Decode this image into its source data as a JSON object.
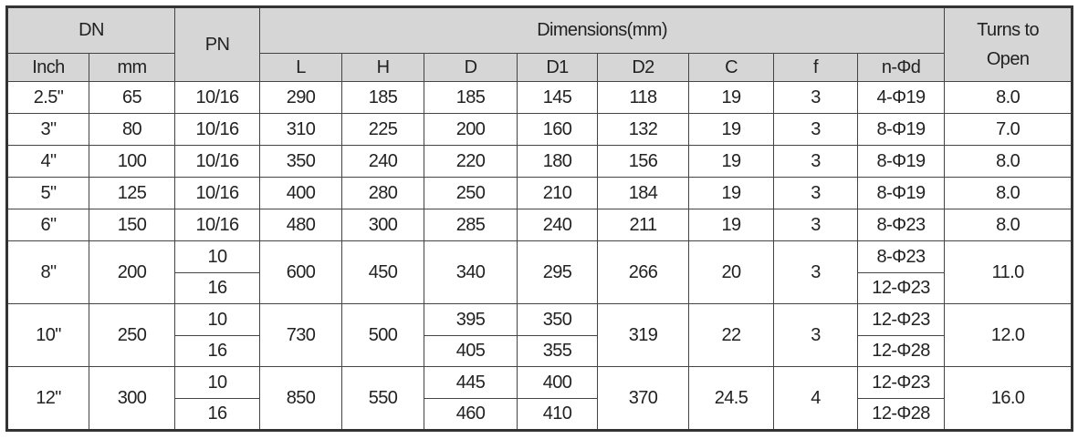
{
  "header": {
    "dn": "DN",
    "pn": "PN",
    "dimensions": "Dimensions(mm)",
    "turns": "Turns to Open",
    "inch": "Inch",
    "mm": "mm",
    "dims": [
      "L",
      "H",
      "D",
      "D1",
      "D2",
      "C",
      "f",
      "n-Φd"
    ]
  },
  "rows": [
    {
      "inch": "2.5\"",
      "mm": "65",
      "pn": "10/16",
      "L": "290",
      "H": "185",
      "D": "185",
      "D1": "145",
      "D2": "118",
      "C": "19",
      "f": "3",
      "nd": "4-Φ19",
      "turns": "8.0"
    },
    {
      "inch": "3\"",
      "mm": "80",
      "pn": "10/16",
      "L": "310",
      "H": "225",
      "D": "200",
      "D1": "160",
      "D2": "132",
      "C": "19",
      "f": "3",
      "nd": "8-Φ19",
      "turns": "7.0"
    },
    {
      "inch": "4\"",
      "mm": "100",
      "pn": "10/16",
      "L": "350",
      "H": "240",
      "D": "220",
      "D1": "180",
      "D2": "156",
      "C": "19",
      "f": "3",
      "nd": "8-Φ19",
      "turns": "8.0"
    },
    {
      "inch": "5\"",
      "mm": "125",
      "pn": "10/16",
      "L": "400",
      "H": "280",
      "D": "250",
      "D1": "210",
      "D2": "184",
      "C": "19",
      "f": "3",
      "nd": "8-Φ19",
      "turns": "8.0"
    },
    {
      "inch": "6\"",
      "mm": "150",
      "pn": "10/16",
      "L": "480",
      "H": "300",
      "D": "285",
      "D1": "240",
      "D2": "211",
      "C": "19",
      "f": "3",
      "nd": "8-Φ23",
      "turns": "8.0"
    },
    {
      "inch": "8\"",
      "mm": "200",
      "pn": [
        "10",
        "16"
      ],
      "L": "600",
      "H": "450",
      "D": "340",
      "D1": "295",
      "D2": "266",
      "C": "20",
      "f": "3",
      "nd": [
        "8-Φ23",
        "12-Φ23"
      ],
      "turns": "11.0"
    },
    {
      "inch": "10\"",
      "mm": "250",
      "pn": [
        "10",
        "16"
      ],
      "L": "730",
      "H": "500",
      "D": [
        "395",
        "405"
      ],
      "D1": [
        "350",
        "355"
      ],
      "D2": "319",
      "C": "22",
      "f": "3",
      "nd": [
        "12-Φ23",
        "12-Φ28"
      ],
      "turns": "12.0"
    },
    {
      "inch": "12\"",
      "mm": "300",
      "pn": [
        "10",
        "16"
      ],
      "L": "850",
      "H": "550",
      "D": [
        "445",
        "460"
      ],
      "D1": [
        "400",
        "410"
      ],
      "D2": "370",
      "C": "24.5",
      "f": "4",
      "nd": [
        "12-Φ23",
        "12-Φ28"
      ],
      "turns": "16.0"
    }
  ],
  "colors": {
    "header_bg": "#d6d6d6",
    "border": "#444444"
  }
}
